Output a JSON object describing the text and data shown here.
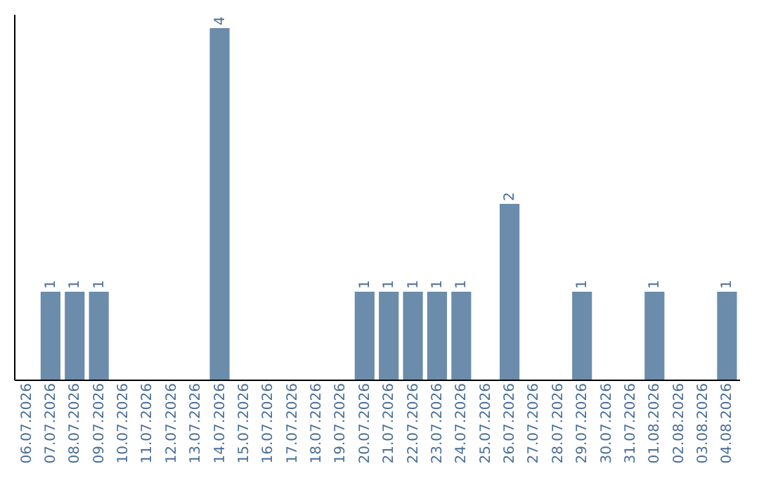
{
  "chart_data": {
    "type": "bar",
    "categories": [
      "06.07.2026",
      "07.07.2026",
      "08.07.2026",
      "09.07.2026",
      "10.07.2026",
      "11.07.2026",
      "12.07.2026",
      "13.07.2026",
      "14.07.2026",
      "15.07.2026",
      "16.07.2026",
      "17.07.2026",
      "18.07.2026",
      "19.07.2026",
      "20.07.2026",
      "21.07.2026",
      "22.07.2026",
      "23.07.2026",
      "24.07.2026",
      "25.07.2026",
      "26.07.2026",
      "27.07.2026",
      "28.07.2026",
      "29.07.2026",
      "30.07.2026",
      "31.07.2026",
      "01.08.2026",
      "02.08.2026",
      "03.08.2026",
      "04.08.2026"
    ],
    "values": [
      0,
      1,
      1,
      1,
      0,
      0,
      0,
      0,
      4,
      0,
      0,
      0,
      0,
      0,
      1,
      1,
      1,
      1,
      1,
      0,
      2,
      0,
      0,
      1,
      0,
      0,
      1,
      0,
      0,
      1
    ],
    "value_labels": [
      null,
      "1",
      "1",
      "1",
      null,
      null,
      null,
      null,
      "4",
      null,
      null,
      null,
      null,
      null,
      "1",
      "1",
      "1",
      "1",
      "1",
      null,
      "2",
      null,
      null,
      "1",
      null,
      null,
      "1",
      null,
      null,
      "1"
    ],
    "color": "#6b8cab",
    "ylim": [
      0,
      4.16
    ],
    "tick_labels": "x",
    "grid": false
  }
}
